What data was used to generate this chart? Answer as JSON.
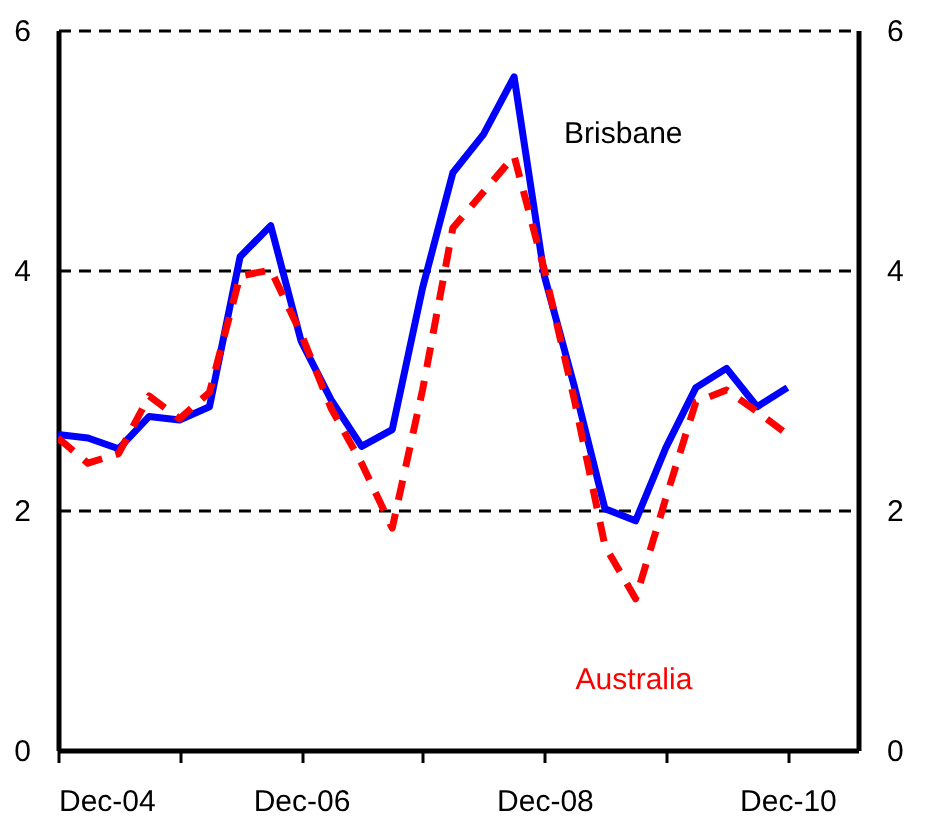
{
  "chart_data": {
    "type": "line",
    "x": [
      "2004-12",
      "2005-03",
      "2005-06",
      "2005-09",
      "2005-12",
      "2006-03",
      "2006-06",
      "2006-09",
      "2006-12",
      "2007-03",
      "2007-06",
      "2007-09",
      "2007-12",
      "2008-03",
      "2008-06",
      "2008-09",
      "2008-12",
      "2009-03",
      "2009-06",
      "2009-09",
      "2009-12",
      "2010-03",
      "2010-06",
      "2010-09",
      "2010-12"
    ],
    "series": [
      {
        "name": "Brisbane",
        "color": "#0000ff",
        "line_style": "solid",
        "values": [
          2.63,
          2.6,
          2.51,
          2.78,
          2.75,
          2.86,
          4.11,
          4.37,
          3.41,
          2.92,
          2.53,
          2.67,
          3.85,
          4.81,
          5.13,
          5.61,
          3.95,
          3.03,
          2.01,
          1.91,
          2.52,
          3.02,
          3.18,
          2.86,
          3.02
        ]
      },
      {
        "name": "Australia",
        "color": "#ff0000",
        "line_style": "dashed",
        "values": [
          2.6,
          2.39,
          2.47,
          2.95,
          2.76,
          2.98,
          3.95,
          4.0,
          3.47,
          2.85,
          2.39,
          1.85,
          3.0,
          4.35,
          4.65,
          4.95,
          4.0,
          2.92,
          1.7,
          1.26,
          2.1,
          2.9,
          3.0,
          2.82,
          2.63
        ]
      }
    ],
    "xlim": [
      "2004-12",
      "2011-07"
    ],
    "xticks": [
      {
        "value": "2004-12",
        "label": "Dec-04"
      },
      {
        "value": "2005-12",
        "label": null
      },
      {
        "value": "2006-12",
        "label": "Dec-06"
      },
      {
        "value": "2007-12",
        "label": null
      },
      {
        "value": "2008-12",
        "label": "Dec-08"
      },
      {
        "value": "2009-12",
        "label": null
      },
      {
        "value": "2010-12",
        "label": "Dec-10"
      }
    ],
    "ylim": [
      0,
      6
    ],
    "yticks": [
      0,
      2,
      4,
      6
    ],
    "y2lim": [
      0,
      6
    ],
    "y2ticks": [
      0,
      2,
      4,
      6
    ],
    "grid": "y"
  }
}
